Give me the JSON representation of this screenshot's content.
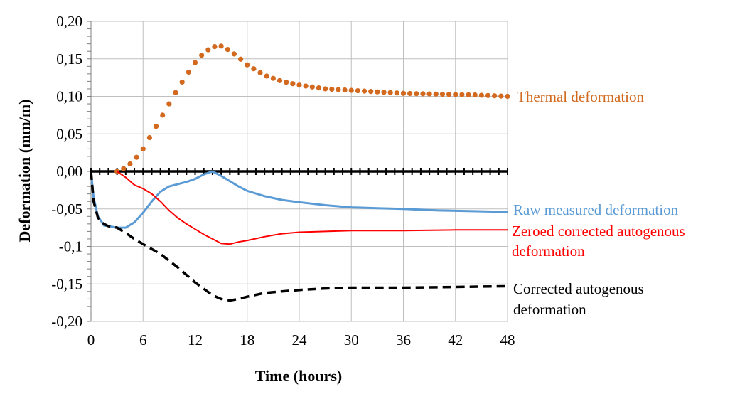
{
  "chart_data": {
    "type": "line",
    "title": "",
    "xlabel": "Time (hours)",
    "ylabel": "Deformation (mm/m)",
    "xlim": [
      0,
      48
    ],
    "ylim": [
      -0.2,
      0.2
    ],
    "xticks": [
      "0",
      "6",
      "12",
      "18",
      "24",
      "30",
      "36",
      "42",
      "48"
    ],
    "yticks": [
      "0,20",
      "0,15",
      "0,10",
      "0,05",
      "0,00",
      "-0,05",
      "-0,1",
      "-0,15",
      "-0,20"
    ],
    "grid": true,
    "series": [
      {
        "name": "Thermal deformation",
        "style": "dotted",
        "color": "#D2691E",
        "points": [
          [
            3,
            0
          ],
          [
            4,
            0.005
          ],
          [
            5,
            0.015
          ],
          [
            6,
            0.03
          ],
          [
            7,
            0.05
          ],
          [
            8,
            0.07
          ],
          [
            9,
            0.09
          ],
          [
            10,
            0.11
          ],
          [
            11,
            0.128
          ],
          [
            12,
            0.145
          ],
          [
            13,
            0.158
          ],
          [
            14,
            0.166
          ],
          [
            15,
            0.167
          ],
          [
            16,
            0.161
          ],
          [
            17,
            0.152
          ],
          [
            18,
            0.142
          ],
          [
            20,
            0.128
          ],
          [
            22,
            0.12
          ],
          [
            24,
            0.115
          ],
          [
            27,
            0.11
          ],
          [
            30,
            0.108
          ],
          [
            33,
            0.106
          ],
          [
            36,
            0.104
          ],
          [
            40,
            0.103
          ],
          [
            44,
            0.102
          ],
          [
            48,
            0.1
          ]
        ]
      },
      {
        "name": "Raw measured deformation",
        "style": "solid",
        "color": "#5B9BD5",
        "points": [
          [
            0,
            0
          ],
          [
            0.3,
            -0.035
          ],
          [
            0.8,
            -0.06
          ],
          [
            1.5,
            -0.072
          ],
          [
            3,
            -0.075
          ],
          [
            4,
            -0.075
          ],
          [
            5,
            -0.068
          ],
          [
            6,
            -0.055
          ],
          [
            7,
            -0.04
          ],
          [
            8,
            -0.027
          ],
          [
            9,
            -0.02
          ],
          [
            10,
            -0.017
          ],
          [
            11,
            -0.014
          ],
          [
            12,
            -0.01
          ],
          [
            13,
            -0.004
          ],
          [
            14,
            0
          ],
          [
            15,
            -0.006
          ],
          [
            16,
            -0.013
          ],
          [
            17,
            -0.02
          ],
          [
            18,
            -0.026
          ],
          [
            20,
            -0.033
          ],
          [
            22,
            -0.038
          ],
          [
            24,
            -0.041
          ],
          [
            27,
            -0.045
          ],
          [
            30,
            -0.048
          ],
          [
            33,
            -0.049
          ],
          [
            36,
            -0.05
          ],
          [
            40,
            -0.052
          ],
          [
            44,
            -0.053
          ],
          [
            48,
            -0.054
          ]
        ]
      },
      {
        "name": "Zeroed corrected autogenous deformation",
        "style": "solid",
        "color": "#FF0000",
        "points": [
          [
            3,
            0
          ],
          [
            4,
            -0.008
          ],
          [
            5,
            -0.018
          ],
          [
            6,
            -0.023
          ],
          [
            7,
            -0.03
          ],
          [
            8,
            -0.04
          ],
          [
            9,
            -0.052
          ],
          [
            10,
            -0.062
          ],
          [
            11,
            -0.07
          ],
          [
            12,
            -0.077
          ],
          [
            13,
            -0.084
          ],
          [
            14,
            -0.09
          ],
          [
            15,
            -0.096
          ],
          [
            16,
            -0.097
          ],
          [
            17,
            -0.094
          ],
          [
            18,
            -0.092
          ],
          [
            20,
            -0.087
          ],
          [
            22,
            -0.083
          ],
          [
            24,
            -0.081
          ],
          [
            27,
            -0.08
          ],
          [
            30,
            -0.079
          ],
          [
            36,
            -0.079
          ],
          [
            42,
            -0.078
          ],
          [
            48,
            -0.078
          ]
        ]
      },
      {
        "name": "Corrected autogenous deformation",
        "style": "dashed",
        "color": "#000000",
        "points": [
          [
            0,
            0
          ],
          [
            0.3,
            -0.04
          ],
          [
            0.8,
            -0.062
          ],
          [
            1.5,
            -0.07
          ],
          [
            2,
            -0.073
          ],
          [
            3,
            -0.075
          ],
          [
            4,
            -0.082
          ],
          [
            5,
            -0.09
          ],
          [
            6,
            -0.097
          ],
          [
            8,
            -0.11
          ],
          [
            10,
            -0.128
          ],
          [
            12,
            -0.148
          ],
          [
            14,
            -0.165
          ],
          [
            15,
            -0.17
          ],
          [
            16,
            -0.172
          ],
          [
            17,
            -0.17
          ],
          [
            18,
            -0.167
          ],
          [
            20,
            -0.162
          ],
          [
            22,
            -0.16
          ],
          [
            24,
            -0.158
          ],
          [
            27,
            -0.156
          ],
          [
            30,
            -0.155
          ],
          [
            36,
            -0.155
          ],
          [
            42,
            -0.154
          ],
          [
            48,
            -0.153
          ]
        ]
      },
      {
        "name": "",
        "style": "zero-line",
        "color": "#000000",
        "points": [
          [
            0,
            0
          ],
          [
            48,
            0
          ]
        ]
      }
    ]
  },
  "labels": {
    "thermal": "Thermal deformation",
    "raw": "Raw measured deformation",
    "zeroed_line1": "Zeroed corrected autogenous",
    "zeroed_line2": "deformation",
    "corrected_line1": "Corrected autogenous",
    "corrected_line2": "deformation"
  },
  "colors": {
    "thermal": "#D2691E",
    "raw": "#5B9BD5",
    "zeroed": "#FF0000",
    "corrected": "#000000",
    "grid": "#BFBFBF"
  }
}
